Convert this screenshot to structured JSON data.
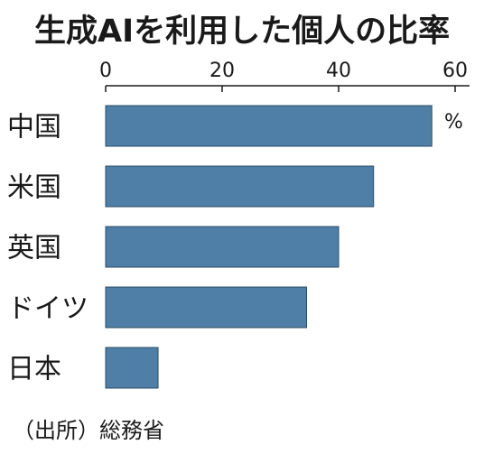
{
  "chart_data": {
    "type": "bar",
    "orientation": "horizontal",
    "title": "生成AIを利用した個人の比率",
    "categories": [
      "中国",
      "米国",
      "英国",
      "ドイツ",
      "日本"
    ],
    "values": [
      56,
      46,
      40,
      34.5,
      9
    ],
    "unit": "%",
    "xlim": [
      0,
      60
    ],
    "xticks": [
      0,
      20,
      40,
      60
    ],
    "grid": false,
    "bar_color": "#4f7fa6",
    "source": "（出所）総務省"
  }
}
